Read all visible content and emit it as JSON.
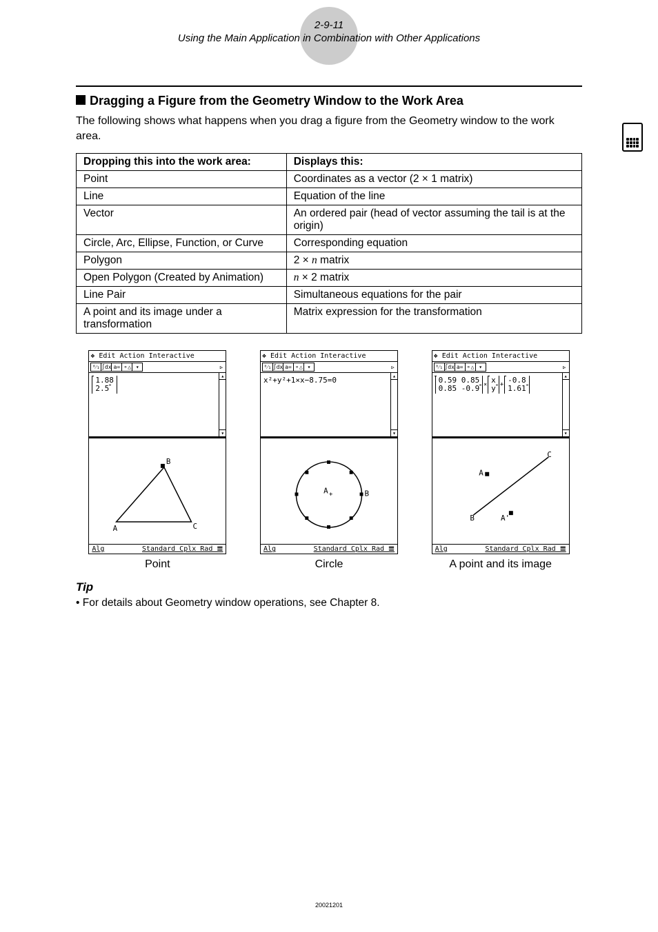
{
  "header": {
    "page_number": "2-9-11",
    "subtitle": "Using the Main Application in Combination with Other Applications"
  },
  "section": {
    "heading": "Dragging a Figure from the Geometry Window to the Work Area",
    "intro": "The following shows what happens when you drag a figure from the Geometry window to the work area."
  },
  "table": {
    "headers": [
      "Dropping this into the work area:",
      "Displays this:"
    ],
    "rows": [
      [
        "Point",
        "Coordinates as a vector (2 × 1 matrix)"
      ],
      [
        "Line",
        "Equation of the line"
      ],
      [
        "Vector",
        "An ordered pair (head of vector assuming the tail is at the origin)"
      ],
      [
        "Circle, Arc, Ellipse, Function, or Curve",
        "Corresponding equation"
      ],
      [
        "Polygon",
        "2 × n matrix"
      ],
      [
        "Open Polygon (Created by Animation)",
        "n × 2 matrix"
      ],
      [
        "Line Pair",
        "Simultaneous equations for the pair"
      ],
      [
        "A point and its image under a transformation",
        "Matrix expression for the transformation"
      ]
    ],
    "italic_n_rows": [
      4,
      5
    ]
  },
  "calc": {
    "menu_items": [
      "❖",
      "Edit",
      "Action",
      "Interactive"
    ],
    "toolbar_icons": [
      "⁰⁄₁",
      "∫dx",
      "a=",
      "⚬△",
      "▾"
    ],
    "status_left": "Alg",
    "status_right": "Standard Cplx Rad 𝌆"
  },
  "screens": [
    {
      "caption": "Point",
      "upper_type": "vector",
      "vector_values": [
        "1.88",
        "2.5"
      ],
      "lower_type": "triangle"
    },
    {
      "caption": "Circle",
      "upper_type": "equation",
      "equation": "x²+y²+1×x−8.75=0",
      "lower_type": "circle"
    },
    {
      "caption": "A point and its image",
      "upper_type": "matrix",
      "matrix": {
        "m": [
          [
            "0.59",
            "0.85"
          ],
          [
            "0.85",
            "-0.9"
          ]
        ],
        "vec1": [
          "x",
          "y"
        ],
        "vec2": [
          "-0.8",
          "1.61"
        ]
      },
      "lower_type": "pointimage"
    }
  ],
  "tip": {
    "heading": "Tip",
    "bullet": "• For details about Geometry window operations, see Chapter 8."
  },
  "footer": "20021201"
}
